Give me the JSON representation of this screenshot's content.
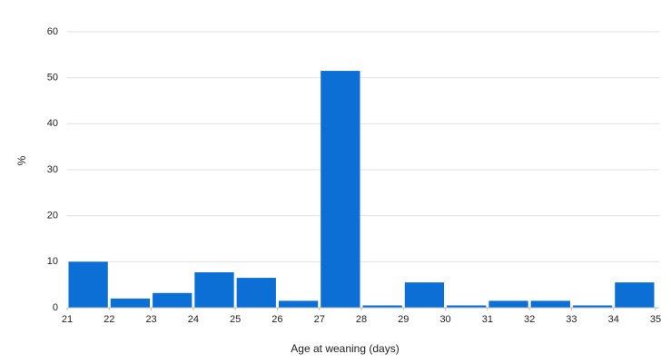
{
  "chart_data": {
    "type": "histogram",
    "x_label": "Age at weaning (days)",
    "y_label": "%",
    "bins": [
      21,
      22,
      23,
      24,
      25,
      26,
      27,
      28,
      29,
      30,
      31,
      32,
      33,
      34,
      35
    ],
    "values": [
      10,
      2,
      3.2,
      7.7,
      6.5,
      1.5,
      51.5,
      0.5,
      5.5,
      0.5,
      1.5,
      1.5,
      0.5,
      5.5
    ],
    "color": "#0b6fd6",
    "xlim": [
      21,
      35
    ],
    "xticks": [
      21,
      22,
      23,
      24,
      25,
      26,
      27,
      28,
      29,
      30,
      31,
      32,
      33,
      34,
      35
    ],
    "ylim": [
      0,
      60
    ],
    "yticks": [
      0,
      10,
      20,
      30,
      40,
      50,
      60
    ],
    "grid": true
  }
}
